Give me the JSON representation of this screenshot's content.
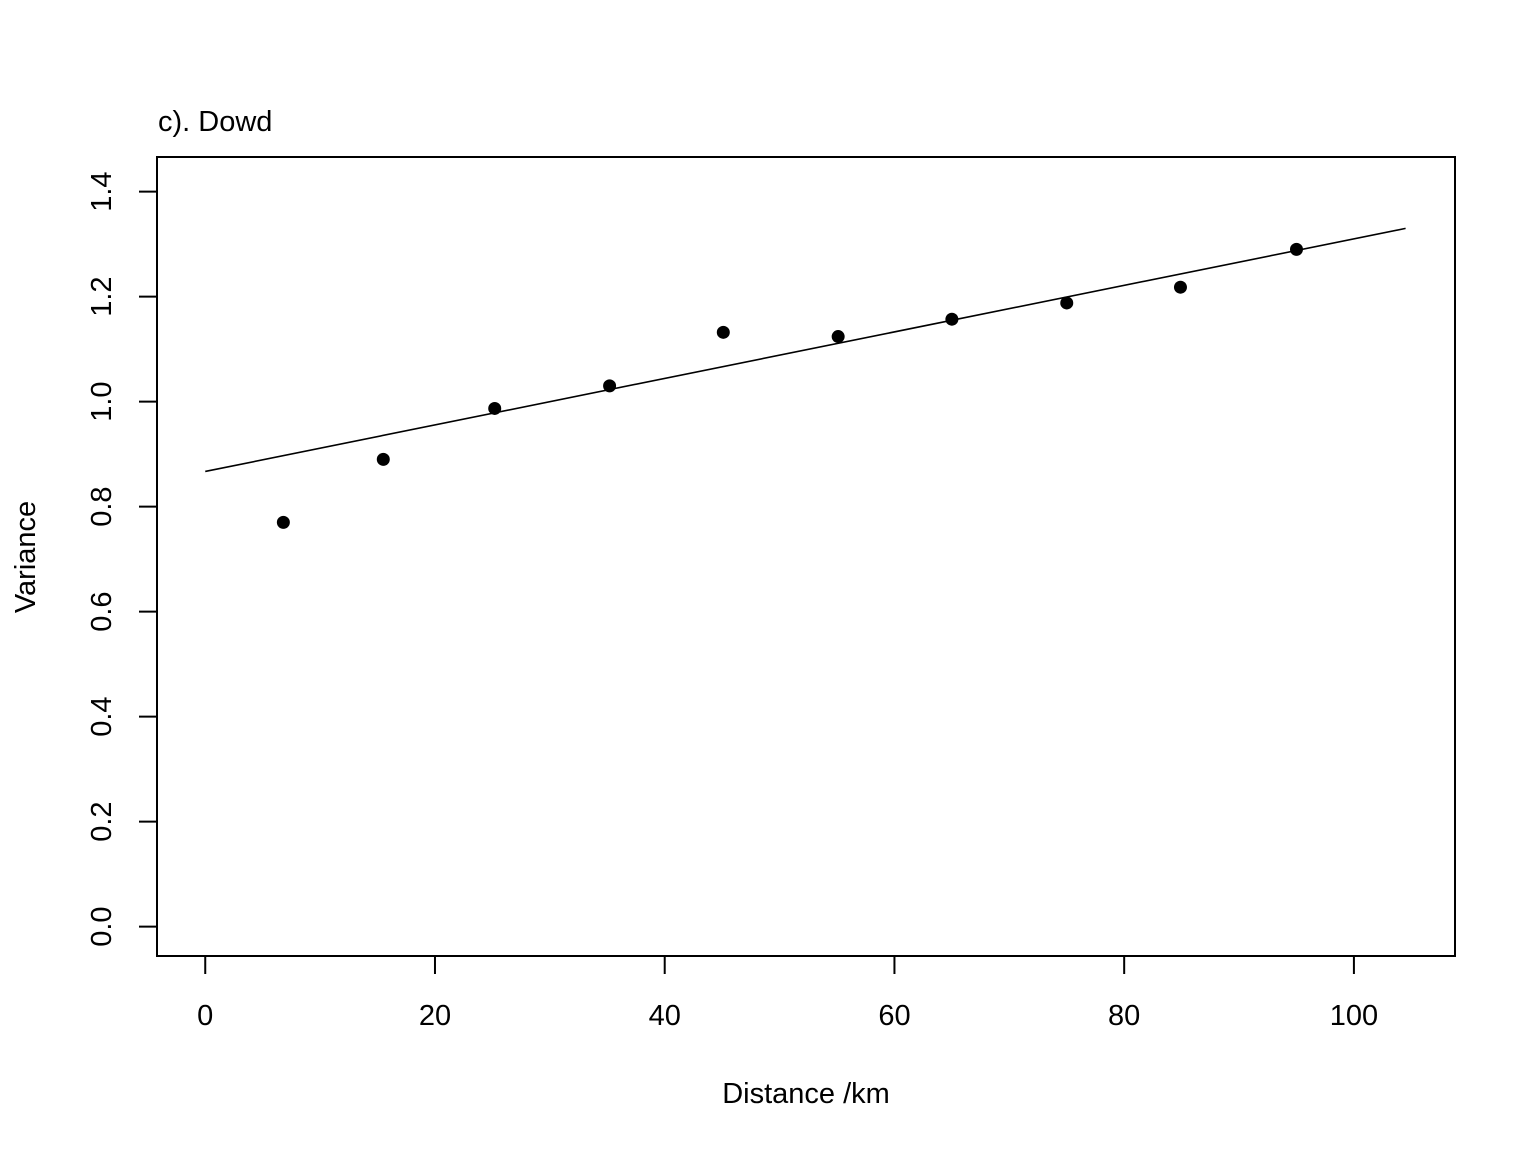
{
  "chart_data": {
    "type": "scatter",
    "title": "c). Dowd",
    "xlabel": "Distance /km",
    "ylabel": "Variance",
    "xlim": [
      -4.2,
      108.8
    ],
    "ylim": [
      -0.056,
      1.466
    ],
    "xticks": [
      0,
      20,
      40,
      60,
      80,
      100
    ],
    "yticks": [
      0.0,
      0.2,
      0.4,
      0.6,
      0.8,
      1.0,
      1.2,
      1.4
    ],
    "xtick_labels": [
      "0",
      "20",
      "40",
      "60",
      "80",
      "100"
    ],
    "ytick_labels": [
      "0.0",
      "0.2",
      "0.4",
      "0.6",
      "0.8",
      "1.0",
      "1.2",
      "1.4"
    ],
    "grid": false,
    "points": [
      {
        "x": 6.8,
        "y": 0.77
      },
      {
        "x": 15.5,
        "y": 0.89
      },
      {
        "x": 25.2,
        "y": 0.987
      },
      {
        "x": 35.2,
        "y": 1.03
      },
      {
        "x": 45.1,
        "y": 1.132
      },
      {
        "x": 55.1,
        "y": 1.124
      },
      {
        "x": 65.0,
        "y": 1.157
      },
      {
        "x": 75.0,
        "y": 1.188
      },
      {
        "x": 84.9,
        "y": 1.218
      },
      {
        "x": 95.0,
        "y": 1.29
      }
    ],
    "fit_line": {
      "x": [
        0,
        104.5
      ],
      "y": [
        0.867,
        1.33
      ]
    }
  }
}
